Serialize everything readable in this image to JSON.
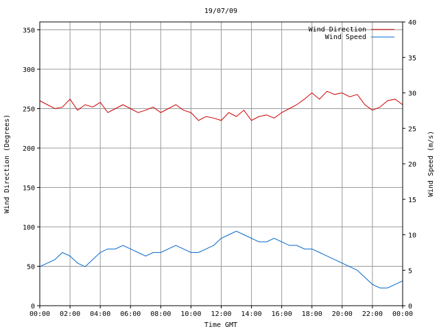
{
  "chart_data": {
    "type": "line",
    "title": "19/07/09",
    "xlabel": "Time GMT",
    "ylabel_left": "Wind Direction (Degrees)",
    "ylabel_right": "Wind Speed (m/s)",
    "x_ticks": [
      "00:00",
      "02:00",
      "04:00",
      "06:00",
      "08:00",
      "10:00",
      "12:00",
      "14:00",
      "16:00",
      "18:00",
      "20:00",
      "22:00",
      "00:00"
    ],
    "x_range_hours": [
      0,
      24
    ],
    "ylim_left": [
      0,
      360
    ],
    "ylim_right": [
      0,
      40
    ],
    "y_ticks_left": [
      "0",
      "50",
      "100",
      "150",
      "200",
      "250",
      "300",
      "350"
    ],
    "y_ticks_right": [
      "0",
      "5",
      "10",
      "15",
      "20",
      "25",
      "30",
      "35",
      "40"
    ],
    "grid": true,
    "legend_position": "top-right",
    "series": [
      {
        "name": "Wind Direction",
        "axis": "left",
        "color": "#cc0000",
        "x_hours": [
          0,
          0.5,
          1,
          1.5,
          2,
          2.5,
          3,
          3.5,
          4,
          4.5,
          5,
          5.5,
          6,
          6.5,
          7,
          7.5,
          8,
          8.5,
          9,
          9.5,
          10,
          10.5,
          11,
          11.5,
          12,
          12.5,
          13,
          13.5,
          14,
          14.5,
          15,
          15.5,
          16,
          16.5,
          17,
          17.5,
          18,
          18.5,
          19,
          19.5,
          20,
          20.5,
          21,
          21.5,
          22,
          22.5,
          23,
          23.5,
          24
        ],
        "values": [
          260,
          255,
          250,
          252,
          262,
          248,
          255,
          252,
          258,
          245,
          250,
          255,
          250,
          245,
          248,
          252,
          245,
          250,
          255,
          248,
          245,
          235,
          240,
          238,
          235,
          245,
          240,
          248,
          235,
          240,
          242,
          238,
          245,
          250,
          255,
          262,
          270,
          262,
          272,
          268,
          270,
          265,
          268,
          255,
          248,
          252,
          260,
          262,
          255
        ]
      },
      {
        "name": "Wind Speed",
        "axis": "right",
        "color": "#0066cc",
        "x_hours": [
          0,
          0.5,
          1,
          1.5,
          2,
          2.5,
          3,
          3.5,
          4,
          4.5,
          5,
          5.5,
          6,
          6.5,
          7,
          7.5,
          8,
          8.5,
          9,
          9.5,
          10,
          10.5,
          11,
          11.5,
          12,
          12.5,
          13,
          13.5,
          14,
          14.5,
          15,
          15.5,
          16,
          16.5,
          17,
          17.5,
          18,
          18.5,
          19,
          19.5,
          20,
          20.5,
          21,
          21.5,
          22,
          22.5,
          23,
          23.5,
          24
        ],
        "values": [
          5.5,
          6,
          6.5,
          7.5,
          7,
          6,
          5.5,
          6.5,
          7.5,
          8,
          8,
          8.5,
          8,
          7.5,
          7,
          7.5,
          7.5,
          8,
          8.5,
          8,
          7.5,
          7.5,
          8,
          8.5,
          9.5,
          10,
          10.5,
          10,
          9.5,
          9,
          9,
          9.5,
          9,
          8.5,
          8.5,
          8,
          8,
          7.5,
          7,
          6.5,
          6,
          5.5,
          5,
          4,
          3,
          2.5,
          2.5,
          3,
          3.5
        ]
      }
    ]
  },
  "colors": {
    "grid": "#999999",
    "axis": "#000000",
    "background": "#ffffff"
  }
}
